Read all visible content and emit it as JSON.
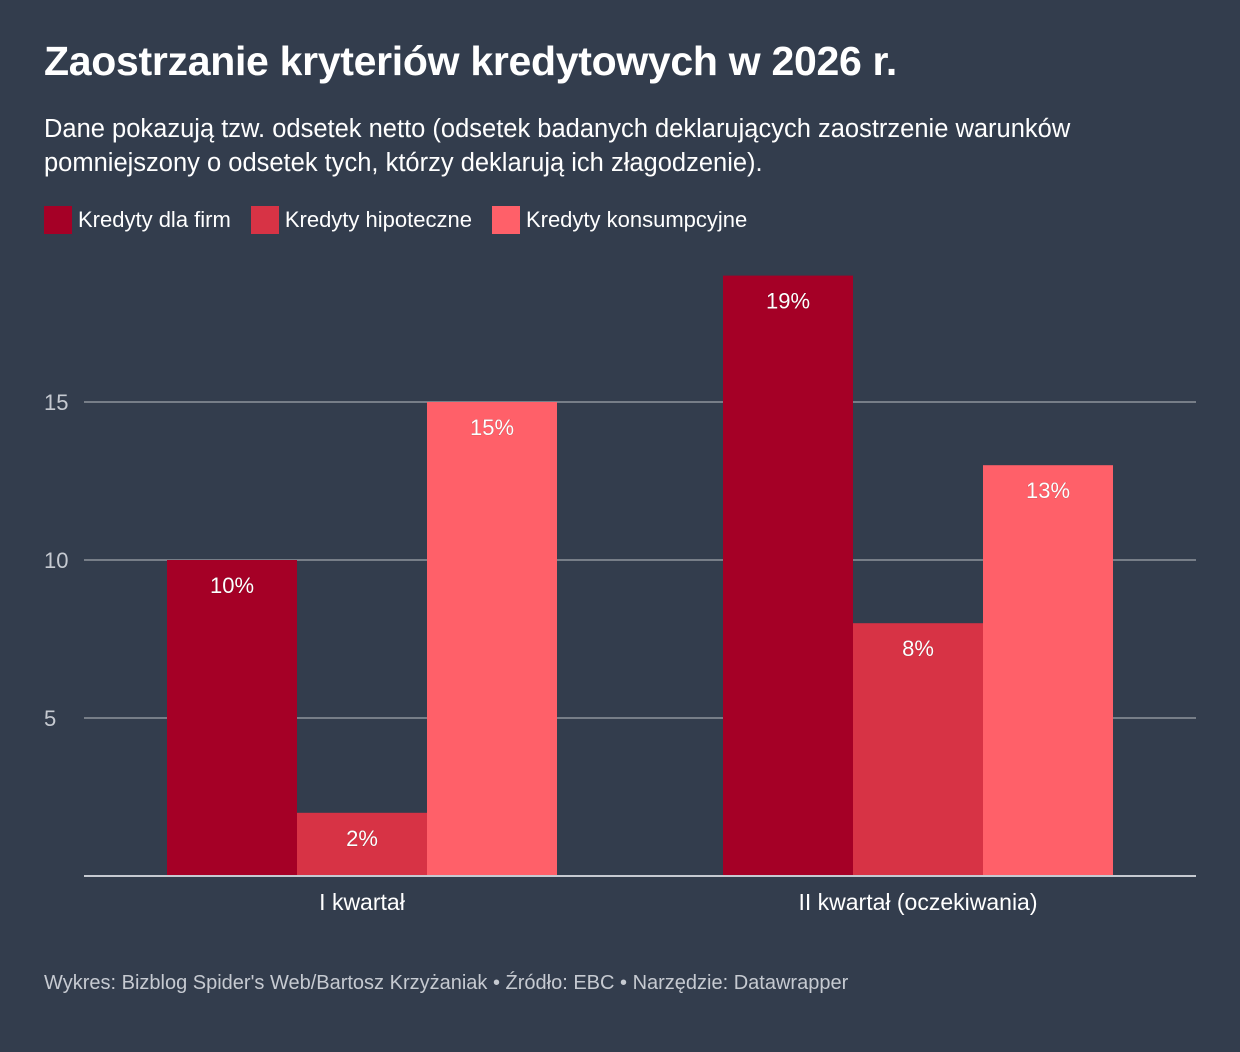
{
  "header": {
    "title": "Zaostrzanie kryteriów kredytowych w 2026 r.",
    "subtitle": "Dane pokazują tzw. odsetek netto (odsetek badanych deklarujących zaostrzenie warunków pomniejszony o odsetek tych, którzy deklarują ich złagodzenie)."
  },
  "legend": {
    "items": [
      {
        "label": "Kredyty dla firm",
        "color": "#a50026"
      },
      {
        "label": "Kredyty hipoteczne",
        "color": "#d73345"
      },
      {
        "label": "Kredyty konsumpcyjne",
        "color": "#ff6069"
      }
    ]
  },
  "chart_data": {
    "type": "bar",
    "title": "Zaostrzanie kryteriów kredytowych w 2026 r.",
    "xlabel": "",
    "ylabel": "",
    "categories": [
      "I kwartał",
      "II kwartał (oczekiwania)"
    ],
    "series": [
      {
        "name": "Kredyty dla firm",
        "values": [
          10,
          19
        ],
        "labels": [
          "10%",
          "19%"
        ],
        "color": "#a50026"
      },
      {
        "name": "Kredyty hipoteczne",
        "values": [
          2,
          8
        ],
        "labels": [
          "2%",
          "8%"
        ],
        "color": "#d73345"
      },
      {
        "name": "Kredyty konsumpcyjne",
        "values": [
          15,
          13
        ],
        "labels": [
          "15%",
          "13%"
        ],
        "color": "#ff6069"
      }
    ],
    "yticks": [
      5,
      10,
      15
    ],
    "ylim": [
      0,
      19
    ],
    "grid": true,
    "legend_position": "top-left"
  },
  "footer": {
    "credit": "Wykres: Bizblog Spider's Web/Bartosz Krzyżaniak • Źródło: EBC • Narzędzie: Datawrapper"
  }
}
